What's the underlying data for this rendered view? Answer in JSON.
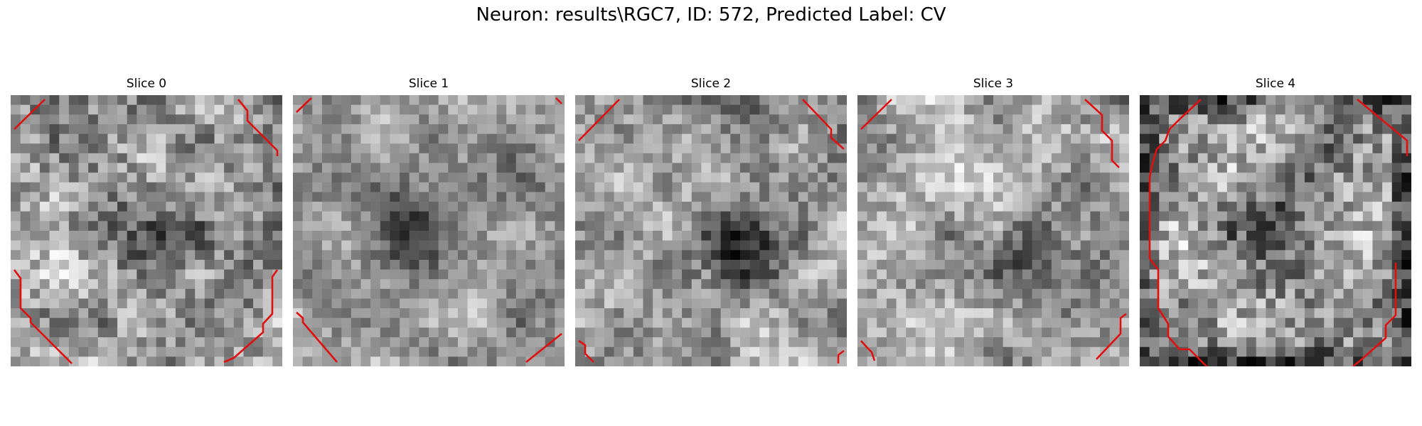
{
  "figure": {
    "title": "Neuron: results\\RGC7, ID: 572, Predicted Label: CV"
  },
  "chart_data": {
    "type": "heatmap",
    "colormap": "gray",
    "contour_color": "#e01010",
    "grid_size": [
      28,
      28
    ],
    "slices": [
      {
        "title": "Slice 0",
        "dark_center": [
          0.55,
          0.58
        ],
        "dark_strength": 0.35,
        "noise": 0.28,
        "seed": 11,
        "dark_border": false
      },
      {
        "title": "Slice 1",
        "dark_center": [
          0.42,
          0.52
        ],
        "dark_strength": 0.55,
        "noise": 0.18,
        "seed": 23,
        "dark_border": false
      },
      {
        "title": "Slice 2",
        "dark_center": [
          0.6,
          0.55
        ],
        "dark_strength": 0.45,
        "noise": 0.22,
        "seed": 37,
        "dark_border": false
      },
      {
        "title": "Slice 3",
        "dark_center": [
          0.62,
          0.62
        ],
        "dark_strength": 0.35,
        "noise": 0.22,
        "seed": 41,
        "dark_border": false
      },
      {
        "title": "Slice 4",
        "dark_center": [
          0.5,
          0.5
        ],
        "dark_strength": 0.15,
        "noise": 0.32,
        "seed": 53,
        "dark_border": true
      }
    ]
  }
}
